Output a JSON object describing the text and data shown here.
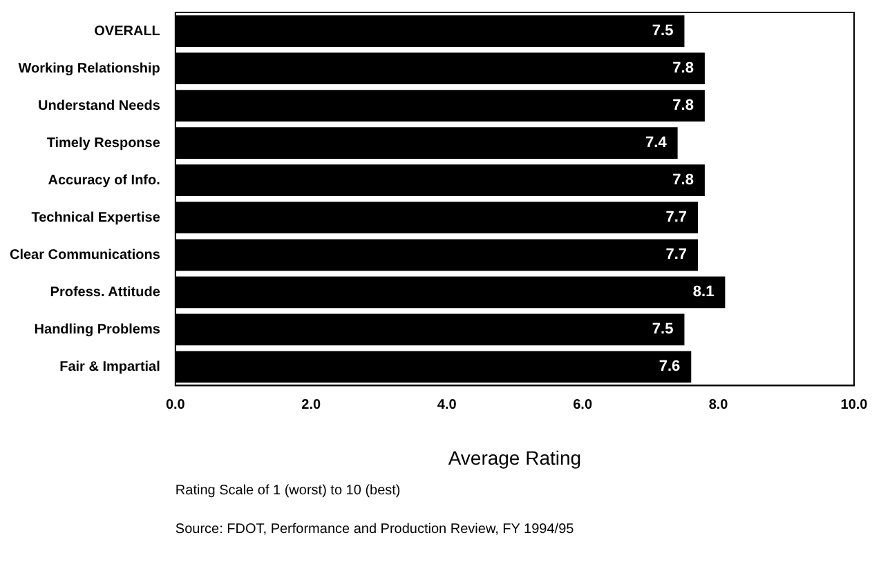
{
  "chart_data": {
    "type": "bar",
    "orientation": "horizontal",
    "categories": [
      "OVERALL",
      "Working Relationship",
      "Understand Needs",
      "Timely Response",
      "Accuracy of Info.",
      "Technical Expertise",
      "Clear Communications",
      "Profess. Attitude",
      "Handling Problems",
      "Fair & Impartial"
    ],
    "values": [
      7.5,
      7.8,
      7.8,
      7.4,
      7.8,
      7.7,
      7.7,
      8.1,
      7.5,
      7.6
    ],
    "color": "#000000",
    "xlim": [
      0,
      10
    ],
    "xticks": [
      {
        "value": 0,
        "label": "0.0"
      },
      {
        "value": 2,
        "label": "2.0"
      },
      {
        "value": 4,
        "label": "4.0"
      },
      {
        "value": 6,
        "label": "6.0"
      },
      {
        "value": 8,
        "label": "8.0"
      },
      {
        "value": 10,
        "label": "10.0"
      }
    ],
    "xlabel": "Average Rating",
    "data_labels": true,
    "grid": false,
    "legend": false,
    "annotations": [
      "Rating Scale of 1 (worst) to 10 (best)",
      "Source: FDOT, Performance and Production Review, FY 1994/95"
    ]
  }
}
